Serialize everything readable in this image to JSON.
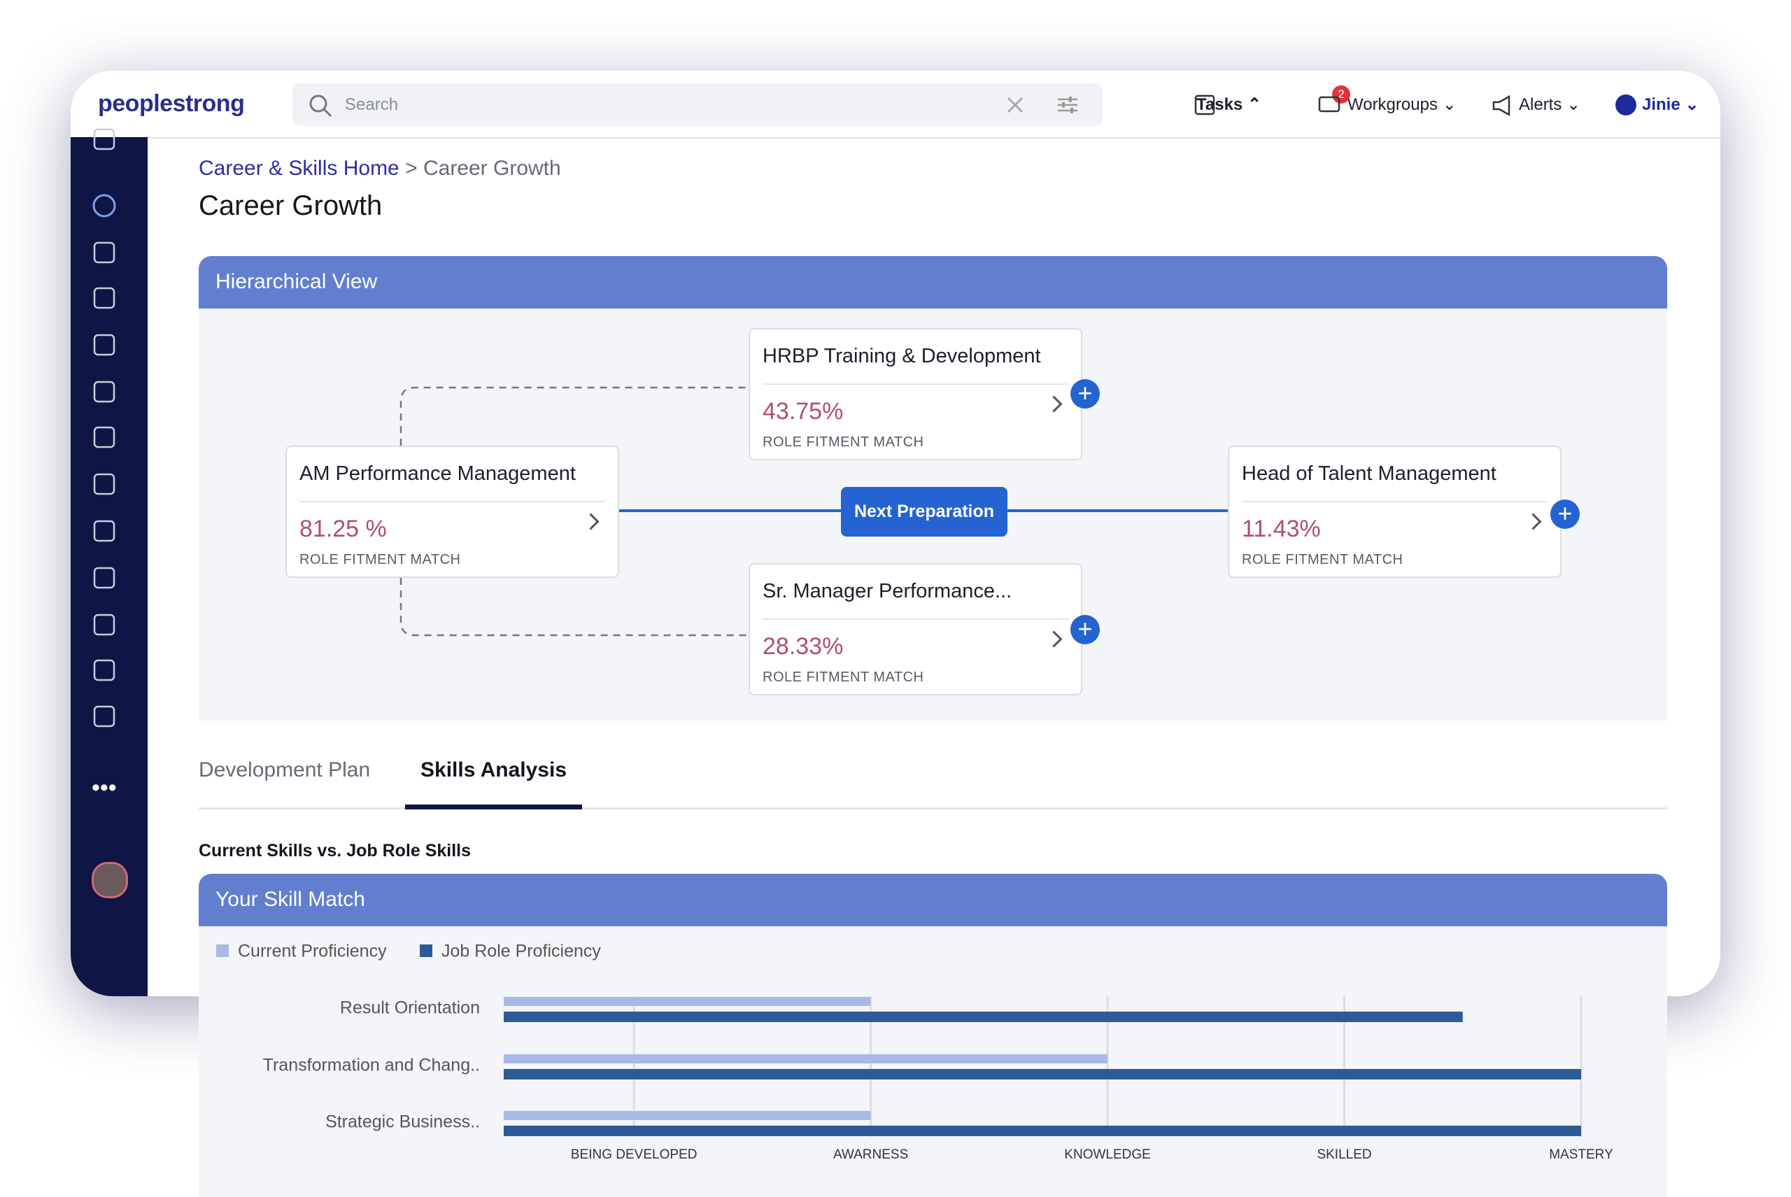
{
  "header": {
    "logo": "peoplestrong",
    "search_placeholder": "Search",
    "menu": [
      {
        "label": "Tasks"
      },
      {
        "label": "Workgroups",
        "badge": "2"
      },
      {
        "label": "Alerts"
      },
      {
        "label": "Jinie"
      }
    ]
  },
  "breadcrumb": {
    "home": "Career & Skills Home",
    "separator": ">",
    "current": "Career Growth"
  },
  "page_title": "Career Growth",
  "hierarchy": {
    "title": "Hierarchical View",
    "center_button": "Next Preparation",
    "nodes": [
      {
        "title": "AM Performance Management",
        "match": "81.25 %",
        "match_label": "ROLE FITMENT MATCH"
      },
      {
        "title": "HRBP Training & Development",
        "match": "43.75%",
        "match_label": "ROLE FITMENT MATCH"
      },
      {
        "title": "Sr. Manager Performance...",
        "match": "28.33%",
        "match_label": "ROLE FITMENT MATCH"
      },
      {
        "title": "Head of Talent Management",
        "match": "11.43%",
        "match_label": "ROLE FITMENT MATCH"
      }
    ]
  },
  "tabs": [
    "Development Plan",
    "Skills Analysis"
  ],
  "active_tab": 1,
  "section_title": "Current Skills vs. Job Role Skills",
  "chart_data": {
    "type": "bar",
    "orientation": "horizontal",
    "title": "Your Skill Match",
    "categories": [
      "Result Orientation",
      "Transformation and Chang..",
      "Strategic Business.."
    ],
    "series": [
      {
        "name": "Current Proficiency",
        "color": "#a9b9e6",
        "values": [
          2,
          3,
          2
        ]
      },
      {
        "name": "Job Role Proficiency",
        "color": "#2d5b95",
        "values": [
          4.5,
          5,
          5
        ]
      }
    ],
    "xlim": [
      0.45,
      5
    ],
    "xticks": [
      {
        "value": 1,
        "label": "BEING DEVELOPED"
      },
      {
        "value": 2,
        "label": "AWARNESS"
      },
      {
        "value": 3,
        "label": "KNOWLEDGE"
      },
      {
        "value": 4,
        "label": "SKILLED"
      },
      {
        "value": 5,
        "label": "MASTERY"
      }
    ],
    "grid": true
  }
}
